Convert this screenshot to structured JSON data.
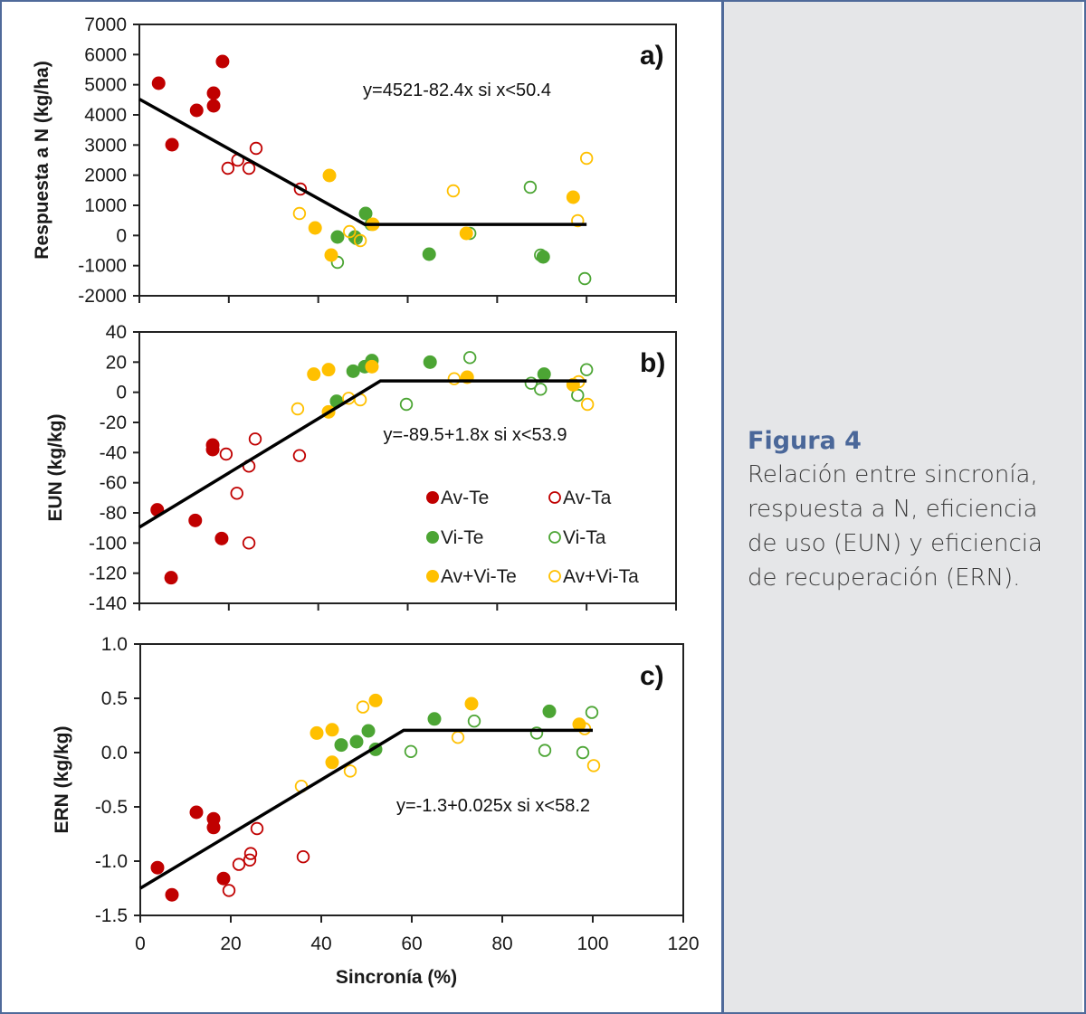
{
  "caption": {
    "title": "Figura 4",
    "text": "Relación entre sincronía, respuesta a N, eficiencia de uso (EUN) y eficiencia de recuperación (ERN)."
  },
  "colors": {
    "frame": "#4f6a9a",
    "caption_bg": "#e5e6e8",
    "caption_title": "#4a6799",
    "Av": "#c00000",
    "Vi": "#4ca534",
    "AvVi": "#ffc000",
    "fit_line": "#000000"
  },
  "legend": [
    {
      "name": "Av-Te",
      "color_key": "Av",
      "filled": true
    },
    {
      "name": "Av-Ta",
      "color_key": "Av",
      "filled": false
    },
    {
      "name": "Vi-Te",
      "color_key": "Vi",
      "filled": true
    },
    {
      "name": "Vi-Ta",
      "color_key": "Vi",
      "filled": false
    },
    {
      "name": "Av+Vi-Te",
      "color_key": "AvVi",
      "filled": true
    },
    {
      "name": "Av+Vi-Ta",
      "color_key": "AvVi",
      "filled": false
    }
  ],
  "chart_data": [
    {
      "type": "scatter",
      "panel_label": "a)",
      "ylabel": "Respuesta a N (kg/ha)",
      "xlabel": "",
      "xlim": [
        0,
        120
      ],
      "ylim": [
        -2000,
        7000
      ],
      "yticks": [
        7000,
        6000,
        5000,
        4000,
        3000,
        2000,
        1000,
        0,
        -1000,
        -2000
      ],
      "xticks": [
        0,
        20,
        40,
        60,
        80,
        100,
        120
      ],
      "show_xtick_labels": false,
      "equation": "y=4521-82.4x si x<50.4",
      "fit": {
        "intercept": 4521,
        "slope": -82.4,
        "breakpoint": 50.4,
        "x_end": 100
      },
      "series": [
        {
          "name": "Av-Te",
          "points": [
            [
              4.3,
              5050
            ],
            [
              7.3,
              3010
            ],
            [
              12.8,
              4150
            ],
            [
              16.6,
              4720
            ],
            [
              16.6,
              4300
            ],
            [
              18.6,
              5770
            ]
          ]
        },
        {
          "name": "Av-Ta",
          "points": [
            [
              19.8,
              2230
            ],
            [
              22,
              2500
            ],
            [
              24.5,
              2230
            ],
            [
              26.1,
              2890
            ],
            [
              36,
              1540
            ]
          ]
        },
        {
          "name": "Vi-Te",
          "points": [
            [
              44.3,
              -50
            ],
            [
              48.2,
              -50
            ],
            [
              50.6,
              730
            ],
            [
              64.8,
              -620
            ],
            [
              90.3,
              -710
            ]
          ]
        },
        {
          "name": "Vi-Ta",
          "points": [
            [
              44.3,
              -890
            ],
            [
              48.5,
              -100
            ],
            [
              51.8,
              370
            ],
            [
              73.9,
              70
            ],
            [
              87.4,
              1600
            ],
            [
              89.7,
              -650
            ],
            [
              99.6,
              -1430
            ]
          ]
        },
        {
          "name": "Av+Vi-Te",
          "points": [
            [
              39.3,
              250
            ],
            [
              42.5,
              1990
            ],
            [
              42.9,
              -650
            ],
            [
              52.2,
              370
            ],
            [
              73.1,
              70
            ],
            [
              97,
              1270
            ]
          ]
        },
        {
          "name": "Av+Vi-Ta",
          "points": [
            [
              35.8,
              730
            ],
            [
              47,
              130
            ],
            [
              49.4,
              -170
            ],
            [
              70.2,
              1480
            ],
            [
              98,
              490
            ],
            [
              100,
              2560
            ]
          ]
        }
      ]
    },
    {
      "type": "scatter",
      "panel_label": "b)",
      "ylabel": "EUN (kg/kg)",
      "xlabel": "",
      "xlim": [
        0,
        120
      ],
      "ylim": [
        -140,
        40
      ],
      "yticks": [
        40,
        20,
        0,
        -20,
        -40,
        -60,
        -80,
        -100,
        -120,
        -140
      ],
      "xticks": [
        0,
        20,
        40,
        60,
        80,
        100,
        120
      ],
      "show_xtick_labels": false,
      "equation": "y=-89.5+1.8x si x<53.9",
      "fit": {
        "intercept": -89.5,
        "slope": 1.8,
        "breakpoint": 53.9,
        "x_end": 100
      },
      "legend_position": "lower-right",
      "series": [
        {
          "name": "Av-Te",
          "points": [
            [
              4,
              -78
            ],
            [
              7.1,
              -123
            ],
            [
              12.5,
              -85
            ],
            [
              16.4,
              -35
            ],
            [
              16.4,
              -38
            ],
            [
              18.4,
              -97
            ]
          ]
        },
        {
          "name": "Av-Ta",
          "points": [
            [
              19.4,
              -41
            ],
            [
              21.8,
              -67
            ],
            [
              24.5,
              -49
            ],
            [
              25.9,
              -31
            ],
            [
              24.5,
              -100
            ],
            [
              35.8,
              -42
            ]
          ]
        },
        {
          "name": "Vi-Te",
          "points": [
            [
              44.1,
              -6
            ],
            [
              47.8,
              14
            ],
            [
              50.4,
              17
            ],
            [
              52,
              21
            ],
            [
              65,
              20
            ],
            [
              90.5,
              12
            ]
          ]
        },
        {
          "name": "Vi-Ta",
          "points": [
            [
              59.7,
              -8
            ],
            [
              73.9,
              23
            ],
            [
              87.6,
              6
            ],
            [
              89.7,
              2
            ],
            [
              98,
              -2
            ],
            [
              100,
              15
            ]
          ]
        },
        {
          "name": "Av+Vi-Te",
          "points": [
            [
              39,
              12
            ],
            [
              42.3,
              15
            ],
            [
              42.3,
              -13
            ],
            [
              52,
              17
            ],
            [
              73.3,
              10
            ],
            [
              97,
              5
            ]
          ]
        },
        {
          "name": "Av+Vi-Ta",
          "points": [
            [
              35.4,
              -11
            ],
            [
              46.8,
              -4
            ],
            [
              49.4,
              -5
            ],
            [
              70.4,
              9
            ],
            [
              98.2,
              7
            ],
            [
              100.2,
              -8
            ]
          ]
        }
      ]
    },
    {
      "type": "scatter",
      "panel_label": "c)",
      "ylabel": "ERN (kg/kg)",
      "xlabel": "Sincronía (%)",
      "xlim": [
        0,
        120
      ],
      "ylim": [
        -1.5,
        1.0
      ],
      "yticks": [
        "1.0",
        "0.5",
        "0.0",
        "-0.5",
        "-1.0",
        "-1.5"
      ],
      "xticks": [
        0,
        20,
        40,
        60,
        80,
        100,
        120
      ],
      "show_xtick_labels": true,
      "equation": "y=-1.3+0.025x si x<58.2",
      "fit": {
        "intercept": -1.25,
        "slope": 0.025,
        "breakpoint": 58.2,
        "x_end": 100
      },
      "series": [
        {
          "name": "Av-Te",
          "points": [
            [
              3.8,
              -1.06
            ],
            [
              7,
              -1.31
            ],
            [
              12.4,
              -0.55
            ],
            [
              16.2,
              -0.61
            ],
            [
              16.2,
              -0.69
            ],
            [
              18.4,
              -1.16
            ]
          ]
        },
        {
          "name": "Av-Ta",
          "points": [
            [
              19.6,
              -1.27
            ],
            [
              21.8,
              -1.03
            ],
            [
              24.4,
              -0.93
            ],
            [
              24.2,
              -0.99
            ],
            [
              25.8,
              -0.7
            ],
            [
              36,
              -0.96
            ]
          ]
        },
        {
          "name": "Vi-Te",
          "points": [
            [
              44.4,
              0.07
            ],
            [
              47.8,
              0.1
            ],
            [
              50.4,
              0.2
            ],
            [
              52,
              0.03
            ],
            [
              65,
              0.31
            ],
            [
              90.4,
              0.38
            ]
          ]
        },
        {
          "name": "Vi-Ta",
          "points": [
            [
              59.8,
              0.01
            ],
            [
              73.8,
              0.29
            ],
            [
              87.6,
              0.18
            ],
            [
              89.4,
              0.02
            ],
            [
              97.8,
              0
            ],
            [
              99.8,
              0.37
            ]
          ]
        },
        {
          "name": "Av+Vi-Te",
          "points": [
            [
              39,
              0.18
            ],
            [
              42.4,
              0.21
            ],
            [
              42.4,
              -0.09
            ],
            [
              52,
              0.48
            ],
            [
              73.2,
              0.45
            ],
            [
              97,
              0.26
            ]
          ]
        },
        {
          "name": "Av+Vi-Ta",
          "points": [
            [
              35.6,
              -0.31
            ],
            [
              46.4,
              -0.17
            ],
            [
              49.2,
              0.42
            ],
            [
              70.2,
              0.14
            ],
            [
              98.2,
              0.22
            ],
            [
              100.2,
              -0.12
            ]
          ]
        }
      ]
    }
  ]
}
